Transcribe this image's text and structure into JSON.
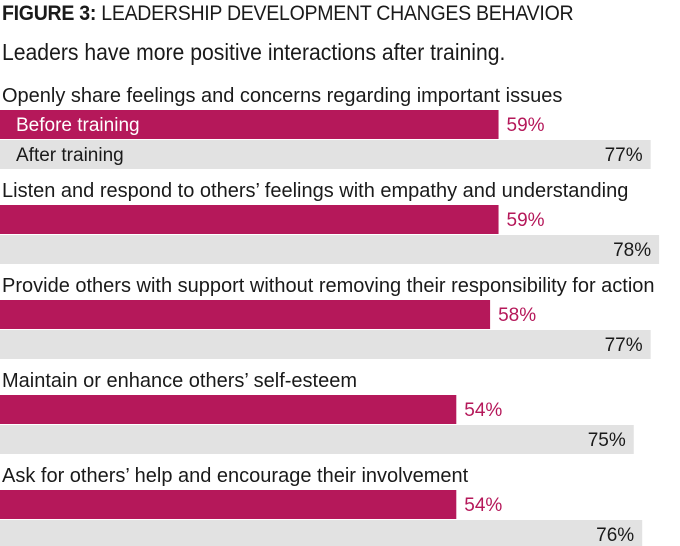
{
  "figure_label": "FIGURE 3:",
  "figure_title": "LEADERSHIP DEVELOPMENT CHANGES BEHAVIOR",
  "subtitle": "Leaders have more positive interactions after training.",
  "colors": {
    "before": "#b5185a",
    "after": "#e2e2e2",
    "before_text": "#b5185a",
    "after_text": "#1a1a1a",
    "legend_before_text": "#ffffff"
  },
  "chart_data": {
    "type": "bar",
    "orientation": "horizontal",
    "categories": [
      "Openly share feelings and concerns regarding important issues",
      "Listen and respond to others’ feelings with empathy and understanding",
      "Provide others with support without removing their responsibility for action",
      "Maintain or enhance others’ self-esteem",
      "Ask for others’ help and encourage their involvement"
    ],
    "series": [
      {
        "name": "Before training",
        "values": [
          59,
          59,
          58,
          54,
          54
        ]
      },
      {
        "name": "After training",
        "values": [
          77,
          78,
          77,
          75,
          76
        ]
      }
    ],
    "value_suffix": "%",
    "legend": "inside first category bars",
    "xlim": [
      0,
      100
    ]
  }
}
